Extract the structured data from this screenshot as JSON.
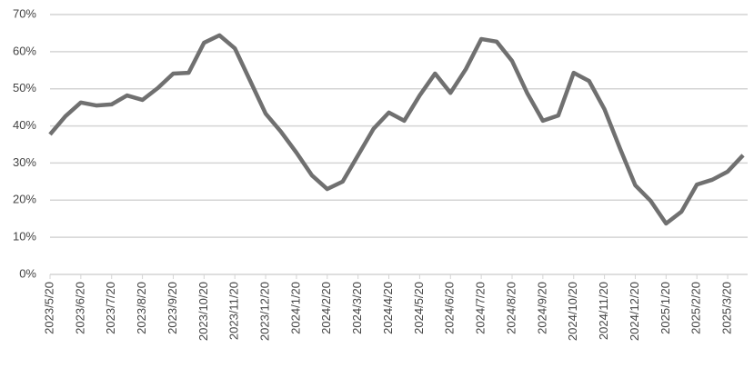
{
  "chart_data": {
    "type": "line",
    "categories": [
      "2023/5/20",
      null,
      "2023/6/20",
      null,
      "2023/7/20",
      null,
      "2023/8/20",
      null,
      "2023/9/20",
      null,
      "2023/10/20",
      null,
      "2023/11/20",
      null,
      "2023/12/20",
      null,
      "2024/1/20",
      null,
      "2024/2/20",
      null,
      "2024/3/20",
      null,
      "2024/4/20",
      null,
      "2024/5/20",
      null,
      "2024/6/20",
      null,
      "2024/7/20",
      null,
      "2024/8/20",
      null,
      "2024/9/20",
      null,
      "2024/10/20",
      null,
      "2024/11/20",
      null,
      "2024/12/20",
      null,
      "2025/1/20",
      null,
      "2025/2/20",
      null,
      "2025/3/20",
      null
    ],
    "values": [
      37.7,
      42.6,
      46.3,
      45.5,
      45.8,
      48.2,
      47.0,
      50.2,
      54.1,
      54.3,
      62.4,
      64.4,
      60.9,
      52.1,
      43.3,
      38.4,
      32.8,
      26.7,
      23.0,
      25.0,
      32.1,
      39.2,
      43.6,
      41.4,
      48.2,
      54.1,
      48.9,
      55.3,
      63.4,
      62.7,
      57.5,
      48.7,
      41.4,
      42.8,
      54.3,
      52.1,
      44.5,
      34.0,
      24.0,
      19.8,
      13.7,
      16.9,
      24.2,
      25.5,
      27.7,
      32.1
    ],
    "color": "#707070",
    "ylim": [
      0,
      70
    ],
    "yticks": [
      {
        "value": 0,
        "label": "0%"
      },
      {
        "value": 10,
        "label": "10%"
      },
      {
        "value": 20,
        "label": "20%"
      },
      {
        "value": 30,
        "label": "30%"
      },
      {
        "value": 40,
        "label": "40%"
      },
      {
        "value": 50,
        "label": "50%"
      },
      {
        "value": 60,
        "label": "60%"
      },
      {
        "value": 70,
        "label": "70%"
      }
    ],
    "grid": true
  }
}
